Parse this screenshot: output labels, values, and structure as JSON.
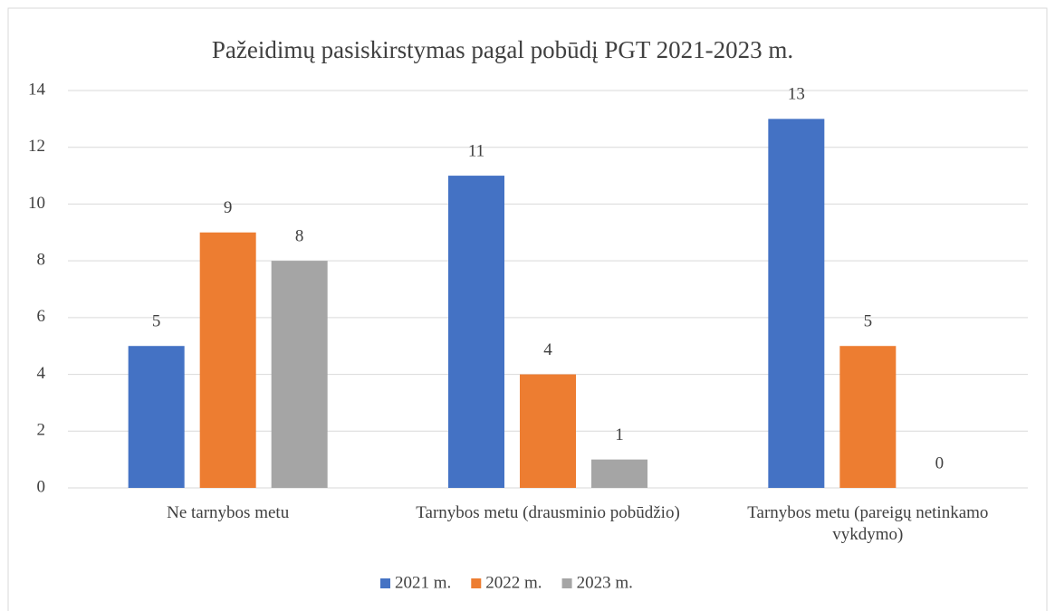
{
  "chart_data": {
    "type": "bar",
    "title": "Pažeidimų pasiskirstymas pagal pobūdį PGT 2021-2023 m.",
    "categories": [
      "Ne tarnybos metu",
      "Tarnybos metu (drausminio pobūdžio)",
      "Tarnybos metu (pareigų netinkamo vykdymo)"
    ],
    "series": [
      {
        "name": "2021 m.",
        "color": "#4472c4",
        "values": [
          5,
          11,
          13
        ]
      },
      {
        "name": "2022 m.",
        "color": "#ed7d31",
        "values": [
          9,
          4,
          5
        ]
      },
      {
        "name": "2023 m.",
        "color": "#a5a5a5",
        "values": [
          8,
          1,
          0
        ]
      }
    ],
    "ylim": [
      0,
      14
    ],
    "yticks": [
      0,
      2,
      4,
      6,
      8,
      10,
      12,
      14
    ],
    "grid": true,
    "legend": "bottom"
  }
}
